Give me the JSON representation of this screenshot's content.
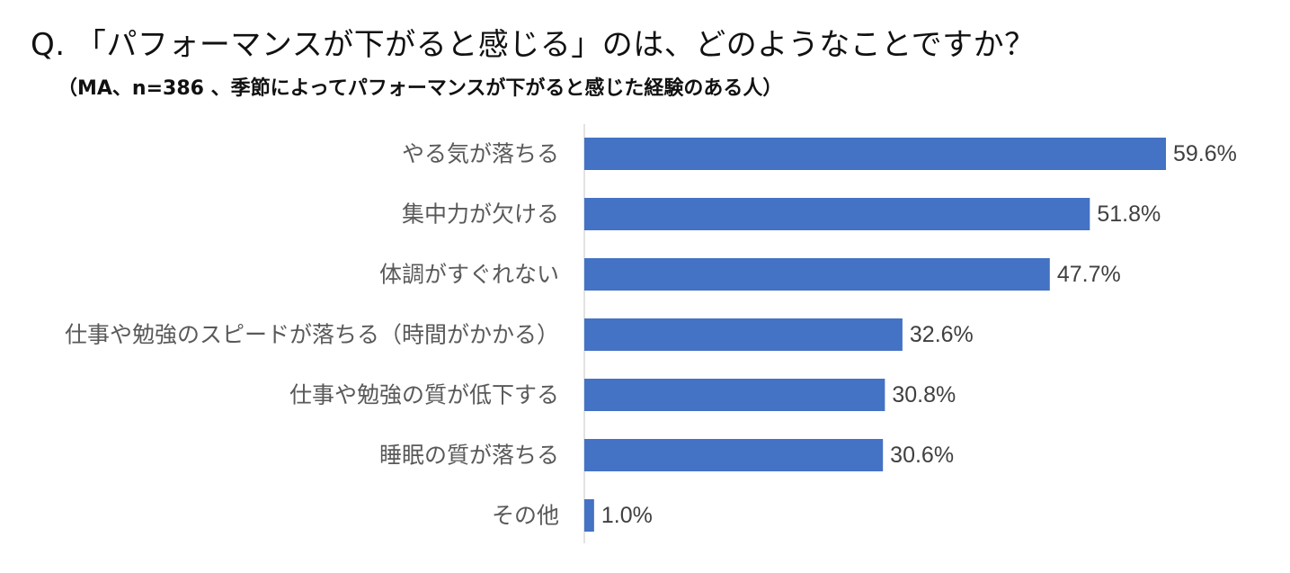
{
  "chart_data": {
    "type": "bar",
    "orientation": "horizontal",
    "title": "Q. 「パフォーマンスが下がると感じる」のは、どのようなことですか？",
    "subtitle": "（MA、n=386 、季節によってパフォーマンスが下がると感じた経験のある人）",
    "categories": [
      "やる気が落ちる",
      "集中力が欠ける",
      "体調がすぐれない",
      "仕事や勉強のスピードが落ちる（時間がかかる）",
      "仕事や勉強の質が低下する",
      "睡眠の質が落ちる",
      "その他"
    ],
    "values": [
      59.6,
      51.8,
      47.7,
      32.6,
      30.8,
      30.6,
      1.0
    ],
    "value_labels": [
      "59.6%",
      "51.8%",
      "47.7%",
      "32.6%",
      "30.8%",
      "30.6%",
      "1.0%"
    ],
    "unit": "%",
    "xlim": [
      0,
      100
    ],
    "grid": false,
    "legend": "none",
    "colors": {
      "bar": "#4472C4",
      "axis": "#D9D9D9",
      "label": "#595959",
      "value_label": "#404040"
    }
  }
}
